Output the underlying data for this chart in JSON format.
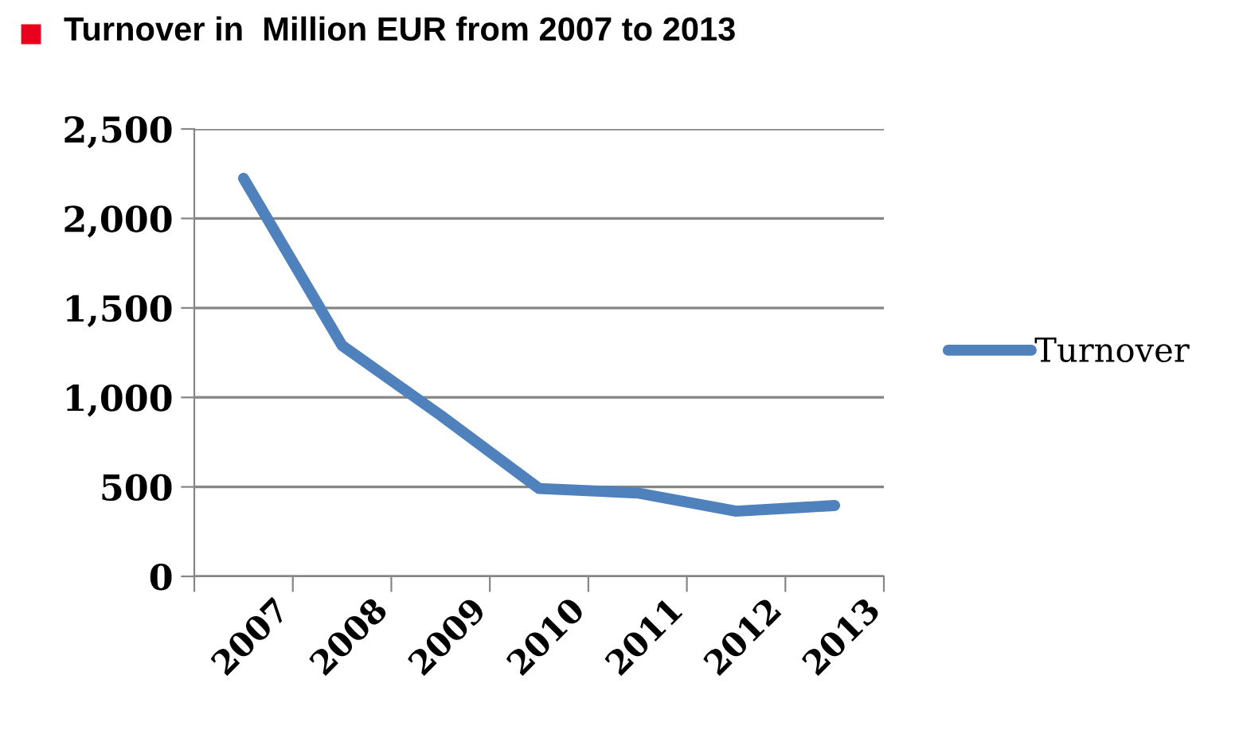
{
  "chart_data": {
    "type": "line",
    "title": "Turnover in  Million EUR from 2007 to 2013",
    "categories": [
      "2007",
      "2008",
      "2009",
      "2010",
      "2011",
      "2012",
      "2013"
    ],
    "series": [
      {
        "name": "Turnover",
        "color": "#4f81bd",
        "values": [
          2224,
          1290,
          900,
          491,
          466,
          364,
          396
        ]
      }
    ],
    "ylim": [
      0,
      2500
    ],
    "yticks": [
      0,
      {
        "value": 500,
        "label": "500"
      },
      {
        "value": 1000,
        "label": "1,000"
      },
      {
        "value": 1500,
        "label": "1,500"
      },
      {
        "value": 2000,
        "label": "2,000"
      },
      {
        "value": 2500,
        "label": "2,500"
      }
    ],
    "grid": "y",
    "legend": "right",
    "marker": "none",
    "line_style": "solid"
  }
}
